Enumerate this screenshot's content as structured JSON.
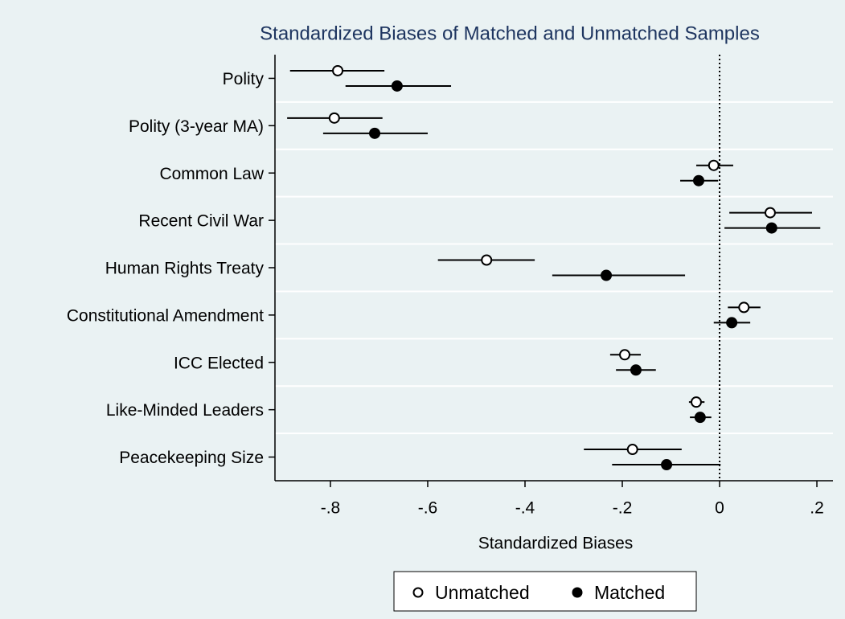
{
  "chart_data": {
    "type": "dot_errorbar",
    "title": "Standardized Biases of Matched and Unmatched Samples",
    "xlabel": "Standardized Biases",
    "categories": [
      "Polity",
      "Polity (3-year MA)",
      "Common Law",
      "Recent Civil War",
      "Human Rights Treaty",
      "Constitutional Amendment",
      "ICC Elected",
      "Like-Minded Leaders",
      "Peacekeeping Size"
    ],
    "series": [
      {
        "name": "Unmatched",
        "color": "#ffffff",
        "values": [
          -0.785,
          -0.792,
          -0.012,
          0.104,
          -0.479,
          0.05,
          -0.195,
          -0.048,
          -0.179
        ],
        "ci_low": [
          -0.883,
          -0.889,
          -0.048,
          0.02,
          -0.579,
          0.017,
          -0.225,
          -0.063,
          -0.279
        ],
        "ci_high": [
          -0.689,
          -0.693,
          0.028,
          0.19,
          -0.38,
          0.084,
          -0.162,
          -0.031,
          -0.078
        ]
      },
      {
        "name": "Matched",
        "color": "#000000",
        "values": [
          -0.663,
          -0.709,
          -0.043,
          0.107,
          -0.233,
          0.025,
          -0.172,
          -0.04,
          -0.109
        ],
        "ci_low": [
          -0.769,
          -0.815,
          -0.081,
          0.01,
          -0.344,
          -0.012,
          -0.213,
          -0.061,
          -0.221
        ],
        "ci_high": [
          -0.552,
          -0.6,
          -0.003,
          0.207,
          -0.071,
          0.063,
          -0.131,
          -0.017,
          0.002
        ]
      }
    ],
    "xlim": [
      -0.914,
      0.233
    ],
    "xticks": [
      {
        "value": -0.8,
        "label": "-.8"
      },
      {
        "value": -0.6,
        "label": "-.6"
      },
      {
        "value": -0.4,
        "label": "-.4"
      },
      {
        "value": -0.2,
        "label": "-.2"
      },
      0,
      {
        "value": 0.2,
        "label": ".2"
      }
    ],
    "xline": 0,
    "grid": true,
    "legend": "bottom"
  }
}
